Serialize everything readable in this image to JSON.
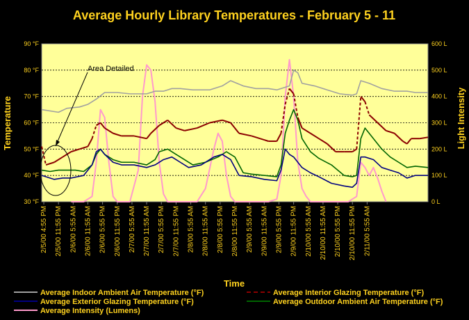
{
  "chart_data": {
    "type": "line",
    "title": "Average Hourly Library Temperatures - February 5 - 11",
    "xlabel": "Time",
    "ylabel_left": "Temperature",
    "ylabel_right": "Light Intensity",
    "left_axis": {
      "min": 30,
      "max": 90,
      "step": 10,
      "unit": " °F",
      "tick_labels": [
        "30 °F",
        "40 °F",
        "50 °F",
        "60 °F",
        "70 °F",
        "80 °F",
        "90 °F"
      ]
    },
    "right_axis": {
      "min": 0,
      "max": 600,
      "step": 100,
      "unit": " L",
      "tick_labels": [
        "0 L",
        "100 L",
        "200 L",
        "300 L",
        "400 L",
        "500 L",
        "600 L"
      ]
    },
    "x_tick_labels": [
      "2/5/00 4:55 PM",
      "2/5/00 11:55 PM",
      "2/6/00 5:55 AM",
      "2/6/00 11:55 AM",
      "2/6/00 5:55 PM",
      "2/6/00 11:55 PM",
      "2/7/00 5:55 AM",
      "2/7/00 11:55 AM",
      "2/7/00 5:55 PM",
      "2/7/00 11:55 PM",
      "2/8/00 5:55 AM",
      "2/8/00 11:55 AM",
      "2/8/00 5:55 PM",
      "2/8/00 11:55 PM",
      "2/9/00 5:55 AM",
      "2/9/00 11:55 AM",
      "2/9/00 5:55 PM",
      "2/9/00 11:55 PM",
      "2/10/00 5:55 AM",
      "2/10/00 11:55 AM",
      "2/10/00 5:55 PM",
      "2/10/00 11:55 PM",
      "2/11/00 5:55 AM"
    ],
    "grid": "horizontal dashed",
    "legend_position": "bottom",
    "annotation": "Area Detailed",
    "plot_background": "#FFFF99",
    "series": [
      {
        "name": "Average Indoor Ambient Air Temperature (°F)",
        "axis": "left",
        "color": "#A0A0A0",
        "dash": "solid",
        "points": [
          [
            0,
            65
          ],
          [
            8,
            64
          ],
          [
            12,
            65.5
          ],
          [
            18,
            66
          ],
          [
            22,
            67
          ],
          [
            26,
            69
          ],
          [
            30,
            71.5
          ],
          [
            36,
            71.5
          ],
          [
            42,
            71
          ],
          [
            50,
            71
          ],
          [
            54,
            72
          ],
          [
            58,
            72
          ],
          [
            62,
            73
          ],
          [
            66,
            73
          ],
          [
            72,
            72.5
          ],
          [
            80,
            72.5
          ],
          [
            86,
            74
          ],
          [
            90,
            76
          ],
          [
            96,
            74
          ],
          [
            102,
            73
          ],
          [
            108,
            73
          ],
          [
            112,
            72.5
          ],
          [
            118,
            74
          ],
          [
            120,
            80
          ],
          [
            122,
            79
          ],
          [
            124,
            75
          ],
          [
            130,
            74
          ],
          [
            136,
            72.5
          ],
          [
            142,
            71
          ],
          [
            148,
            70.5
          ],
          [
            150,
            71
          ],
          [
            152,
            76
          ],
          [
            156,
            75
          ],
          [
            162,
            73
          ],
          [
            168,
            72
          ],
          [
            174,
            72
          ],
          [
            178,
            71.5
          ],
          [
            184,
            71.5
          ]
        ]
      },
      {
        "name": "Average Interior Glazing Temperature (°F)",
        "axis": "left",
        "color": "#8B0000",
        "dash": "solid+dashed",
        "points": [
          [
            0,
            51
          ],
          [
            2,
            44
          ],
          [
            6,
            45
          ],
          [
            10,
            47
          ],
          [
            14,
            49
          ],
          [
            18,
            50
          ],
          [
            22,
            51
          ],
          [
            24,
            54
          ],
          [
            26,
            59
          ],
          [
            28,
            60
          ],
          [
            30,
            58
          ],
          [
            34,
            56
          ],
          [
            38,
            55
          ],
          [
            44,
            55
          ],
          [
            50,
            54
          ],
          [
            52,
            56
          ],
          [
            56,
            59
          ],
          [
            60,
            61
          ],
          [
            64,
            58
          ],
          [
            68,
            57
          ],
          [
            74,
            58
          ],
          [
            80,
            60
          ],
          [
            86,
            61
          ],
          [
            90,
            60
          ],
          [
            94,
            56
          ],
          [
            100,
            55
          ],
          [
            104,
            54
          ],
          [
            108,
            53
          ],
          [
            112,
            53
          ],
          [
            114,
            56
          ],
          [
            116,
            67
          ],
          [
            118,
            73
          ],
          [
            120,
            71
          ],
          [
            122,
            62
          ],
          [
            124,
            58
          ],
          [
            128,
            56
          ],
          [
            132,
            54
          ],
          [
            136,
            52
          ],
          [
            140,
            49
          ],
          [
            144,
            49
          ],
          [
            148,
            49
          ],
          [
            150,
            50
          ],
          [
            152,
            70
          ],
          [
            154,
            68
          ],
          [
            156,
            63
          ],
          [
            160,
            60
          ],
          [
            164,
            57
          ],
          [
            168,
            56
          ],
          [
            172,
            53
          ],
          [
            174,
            52
          ],
          [
            176,
            54
          ],
          [
            180,
            54
          ],
          [
            184,
            54.5
          ]
        ]
      },
      {
        "name": "Average Exterior Glazing Temperature (°F)",
        "axis": "left",
        "color": "#000080",
        "dash": "solid",
        "points": [
          [
            0,
            40
          ],
          [
            6,
            38.5
          ],
          [
            10,
            39
          ],
          [
            14,
            39
          ],
          [
            20,
            40
          ],
          [
            24,
            44
          ],
          [
            26,
            49
          ],
          [
            28,
            50
          ],
          [
            30,
            48
          ],
          [
            34,
            45
          ],
          [
            38,
            44
          ],
          [
            44,
            44
          ],
          [
            50,
            43
          ],
          [
            54,
            44
          ],
          [
            58,
            46
          ],
          [
            62,
            47
          ],
          [
            66,
            45
          ],
          [
            70,
            43
          ],
          [
            76,
            44
          ],
          [
            82,
            47
          ],
          [
            86,
            48
          ],
          [
            90,
            46
          ],
          [
            94,
            40
          ],
          [
            100,
            39.5
          ],
          [
            106,
            38.5
          ],
          [
            112,
            38
          ],
          [
            114,
            42
          ],
          [
            116,
            50
          ],
          [
            118,
            48
          ],
          [
            120,
            47
          ],
          [
            124,
            43
          ],
          [
            128,
            41
          ],
          [
            132,
            39.5
          ],
          [
            138,
            37
          ],
          [
            144,
            36
          ],
          [
            148,
            35.5
          ],
          [
            150,
            37
          ],
          [
            152,
            47
          ],
          [
            154,
            47
          ],
          [
            158,
            46
          ],
          [
            162,
            43
          ],
          [
            166,
            42
          ],
          [
            170,
            41
          ],
          [
            174,
            39
          ],
          [
            178,
            40
          ],
          [
            184,
            40
          ]
        ]
      },
      {
        "name": "Average Outdoor Ambient Air Temperature (°F)",
        "axis": "left",
        "color": "#006400",
        "dash": "solid",
        "points": [
          [
            0,
            42
          ],
          [
            4,
            41.5
          ],
          [
            8,
            42
          ],
          [
            12,
            42
          ],
          [
            16,
            42
          ],
          [
            20,
            41.5
          ],
          [
            24,
            44
          ],
          [
            26,
            48
          ],
          [
            28,
            50
          ],
          [
            30,
            48
          ],
          [
            34,
            46
          ],
          [
            38,
            45
          ],
          [
            44,
            45
          ],
          [
            50,
            44
          ],
          [
            54,
            46
          ],
          [
            56,
            49
          ],
          [
            60,
            50
          ],
          [
            64,
            48
          ],
          [
            68,
            46
          ],
          [
            72,
            44
          ],
          [
            78,
            45
          ],
          [
            84,
            47
          ],
          [
            88,
            49
          ],
          [
            92,
            47
          ],
          [
            96,
            41
          ],
          [
            100,
            40.5
          ],
          [
            106,
            40
          ],
          [
            112,
            39.5
          ],
          [
            114,
            44
          ],
          [
            116,
            56
          ],
          [
            118,
            61
          ],
          [
            120,
            65
          ],
          [
            122,
            61
          ],
          [
            124,
            54
          ],
          [
            128,
            49
          ],
          [
            132,
            46.5
          ],
          [
            138,
            44
          ],
          [
            144,
            40
          ],
          [
            148,
            39.5
          ],
          [
            150,
            40
          ],
          [
            152,
            54
          ],
          [
            154,
            58
          ],
          [
            158,
            54
          ],
          [
            162,
            50
          ],
          [
            166,
            47
          ],
          [
            170,
            45
          ],
          [
            174,
            43
          ],
          [
            178,
            43.5
          ],
          [
            184,
            43
          ]
        ]
      },
      {
        "name": "Average Intensity (Lumens)",
        "axis": "right",
        "color": "#FF99CC",
        "dash": "solid",
        "points": [
          [
            14,
            0
          ],
          [
            20,
            0
          ],
          [
            24,
            20
          ],
          [
            26,
            150
          ],
          [
            28,
            350
          ],
          [
            30,
            320
          ],
          [
            32,
            150
          ],
          [
            34,
            20
          ],
          [
            36,
            0
          ],
          [
            42,
            0
          ],
          [
            46,
            120
          ],
          [
            48,
            400
          ],
          [
            50,
            520
          ],
          [
            52,
            500
          ],
          [
            54,
            380
          ],
          [
            56,
            150
          ],
          [
            58,
            30
          ],
          [
            60,
            0
          ],
          [
            74,
            0
          ],
          [
            78,
            50
          ],
          [
            82,
            200
          ],
          [
            84,
            260
          ],
          [
            86,
            230
          ],
          [
            88,
            100
          ],
          [
            90,
            20
          ],
          [
            92,
            0
          ],
          [
            108,
            0
          ],
          [
            112,
            10
          ],
          [
            114,
            100
          ],
          [
            116,
            400
          ],
          [
            118,
            540
          ],
          [
            120,
            400
          ],
          [
            122,
            150
          ],
          [
            124,
            50
          ],
          [
            126,
            20
          ],
          [
            128,
            0
          ],
          [
            146,
            0
          ],
          [
            150,
            20
          ],
          [
            152,
            150
          ],
          [
            154,
            130
          ],
          [
            156,
            100
          ],
          [
            158,
            130
          ],
          [
            160,
            90
          ],
          [
            162,
            40
          ],
          [
            164,
            0
          ]
        ]
      }
    ]
  }
}
